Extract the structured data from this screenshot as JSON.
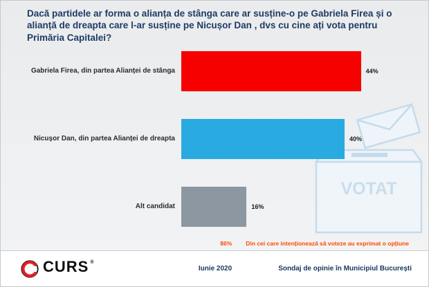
{
  "chart_data": {
    "type": "bar",
    "orientation": "horizontal",
    "title": "Dacă partidele ar forma o alianța de stânga care ar susține-o pe Gabriela Firea și o alianță de dreapta care l-ar susține pe Nicușor Dan , dvs cu cine ați vota pentru Primăria Capitalei?",
    "categories": [
      "Gabriela Firea, din partea Alianței de stânga",
      "Nicușor Dan, din partea Alianței de dreapta",
      "Alt candidat"
    ],
    "values": [
      44,
      40,
      16
    ],
    "value_labels": [
      "44%",
      "40%",
      "16%"
    ],
    "bar_colors": [
      "#f60000",
      "#29aae1",
      "#8d97a2"
    ],
    "xlabel": "",
    "ylabel": "",
    "xlim": [
      0,
      50
    ],
    "grid": false,
    "legend": "none",
    "annotation": {
      "percent": "86%",
      "text": "Din cei care intenționează să voteze au exprimat o opțiune",
      "color": "#fe4a00"
    }
  },
  "watermark": {
    "label": "VOTAT"
  },
  "footer": {
    "brand": "CURS",
    "registered": "®",
    "date": "Iunie 2020",
    "caption": "Sondaj de opinie în Municipiul București"
  }
}
